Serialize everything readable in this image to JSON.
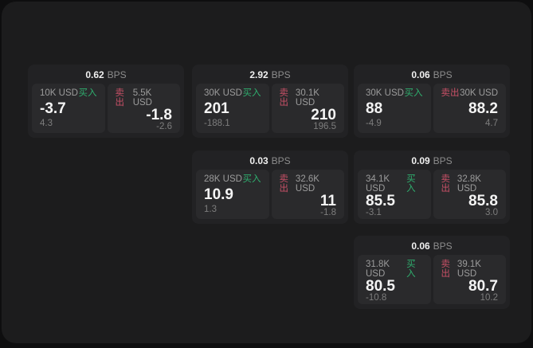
{
  "labels": {
    "bps": "BPS",
    "buy": "买入",
    "sell": "卖出"
  },
  "colors": {
    "buy": "#2fae6e",
    "sell": "#c75066",
    "background": "#0e0e0f",
    "panel": "#1c1c1d",
    "card": "#222224",
    "tile": "#2a2a2c"
  },
  "cards": [
    {
      "bps": "0.62",
      "grid": {
        "row": 0,
        "col": 0
      },
      "buy": {
        "size": "10K USD",
        "value": "-3.7",
        "sub": "4.3"
      },
      "sell": {
        "size": "5.5K USD",
        "value": "-1.8",
        "sub": "-2.6"
      }
    },
    {
      "bps": "2.92",
      "grid": {
        "row": 0,
        "col": 1
      },
      "buy": {
        "size": "30K USD",
        "value": "201",
        "sub": "-188.1"
      },
      "sell": {
        "size": "30.1K USD",
        "value": "210",
        "sub": "196.5"
      }
    },
    {
      "bps": "0.06",
      "grid": {
        "row": 0,
        "col": 2
      },
      "buy": {
        "size": "30K USD",
        "value": "88",
        "sub": "-4.9"
      },
      "sell": {
        "size": "30K USD",
        "value": "88.2",
        "sub": "4.7"
      }
    },
    {
      "bps": "0.03",
      "grid": {
        "row": 1,
        "col": 1
      },
      "buy": {
        "size": "28K USD",
        "value": "10.9",
        "sub": "1.3"
      },
      "sell": {
        "size": "32.6K USD",
        "value": "11",
        "sub": "-1.8"
      }
    },
    {
      "bps": "0.09",
      "grid": {
        "row": 1,
        "col": 2
      },
      "buy": {
        "size": "34.1K USD",
        "value": "85.5",
        "sub": "-3.1"
      },
      "sell": {
        "size": "32.8K USD",
        "value": "85.8",
        "sub": "3.0"
      }
    },
    {
      "bps": "0.06",
      "grid": {
        "row": 2,
        "col": 2
      },
      "buy": {
        "size": "31.8K USD",
        "value": "80.5",
        "sub": "-10.8"
      },
      "sell": {
        "size": "39.1K USD",
        "value": "80.7",
        "sub": "10.2"
      }
    }
  ]
}
